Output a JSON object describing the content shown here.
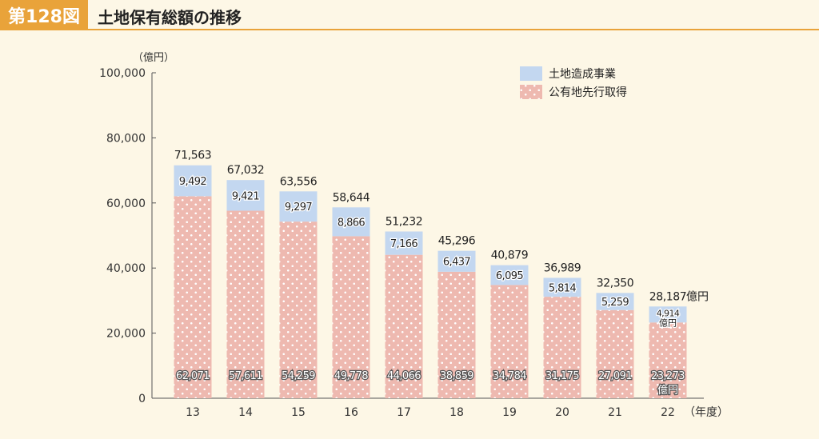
{
  "header": {
    "figure_label": "第128図",
    "title": "土地保有総額の推移"
  },
  "chart_data": {
    "type": "bar",
    "stacked": true,
    "title": "土地保有総額の推移",
    "ylabel": "（億円）",
    "xlabel": "（年度）",
    "ylim": [
      0,
      100000
    ],
    "y_ticks": [
      "0",
      "20,000",
      "40,000",
      "60,000",
      "80,000",
      "100,000"
    ],
    "categories": [
      "13",
      "14",
      "15",
      "16",
      "17",
      "18",
      "19",
      "20",
      "21",
      "22"
    ],
    "series": [
      {
        "name": "公有地先行取得",
        "color": "#eeb9b0",
        "values": [
          62071,
          57611,
          54259,
          49778,
          44066,
          38859,
          34784,
          31175,
          27091,
          23273
        ],
        "labels": [
          "62,071",
          "57,611",
          "54,259",
          "49,778",
          "44,066",
          "38,859",
          "34,784",
          "31,175",
          "27,091",
          "23,273"
        ]
      },
      {
        "name": "土地造成事業",
        "color": "#c3d7f0",
        "values": [
          9492,
          9421,
          9297,
          8866,
          7166,
          6437,
          6095,
          5814,
          5259,
          4914
        ],
        "labels": [
          "9,492",
          "9,421",
          "9,297",
          "8,866",
          "7,166",
          "6,437",
          "6,095",
          "5,814",
          "5,259",
          "4,914"
        ]
      }
    ],
    "totals": [
      71563,
      67032,
      63556,
      58644,
      51232,
      45296,
      40879,
      36989,
      32350,
      28187
    ],
    "total_labels": [
      "71,563",
      "67,032",
      "63,556",
      "58,644",
      "51,232",
      "45,296",
      "40,879",
      "36,989",
      "32,350",
      "28,187"
    ],
    "unit_suffix": "億円",
    "legend_position": "top-right",
    "grid": false
  }
}
